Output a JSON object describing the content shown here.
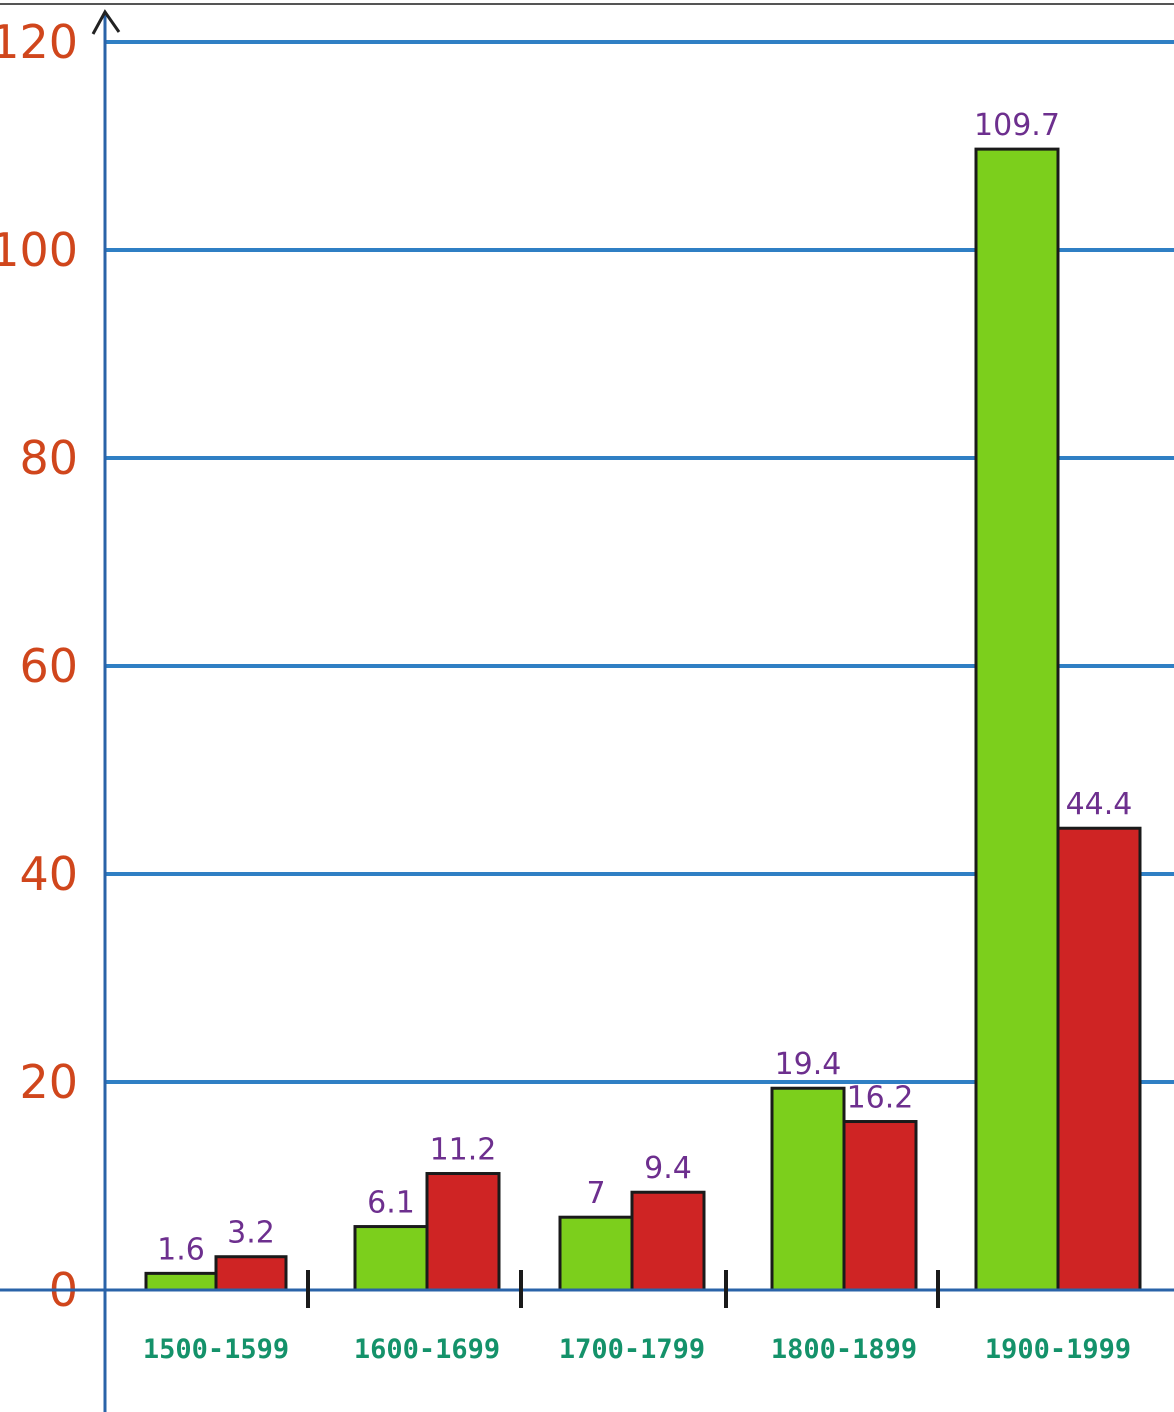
{
  "chart_data": {
    "type": "bar",
    "title": "",
    "xlabel": "",
    "ylabel": "",
    "categories": [
      "1500-1599",
      "1600-1699",
      "1700-1799",
      "1800-1899",
      "1900-1999"
    ],
    "category_labels": [
      "1500-1599",
      "1600-1699",
      "1700-1799",
      "1800-1899",
      "1900-1999"
    ],
    "series": [
      {
        "values": [
          1.6,
          6.1,
          7,
          19.4,
          109.7
        ],
        "labels": [
          "1.6",
          "6.1",
          "7",
          "19.4",
          "109.7"
        ],
        "color": "#7ccf1c"
      },
      {
        "values": [
          3.2,
          11.2,
          9.4,
          16.2,
          44.4
        ],
        "labels": [
          "3.2",
          "11.2",
          "9.4",
          "16.2",
          "44.4"
        ],
        "color": "#cf2424"
      }
    ],
    "ylim": [
      0,
      120
    ],
    "yticks": [
      0,
      20,
      40,
      60,
      80,
      100,
      120
    ],
    "grid": true,
    "colors": {
      "grid": "#2f7fc4",
      "axis": "#2a63a8",
      "tick_label": "#d0461c",
      "category_label": "#14926a",
      "value_label": "#6d2f8e"
    }
  }
}
